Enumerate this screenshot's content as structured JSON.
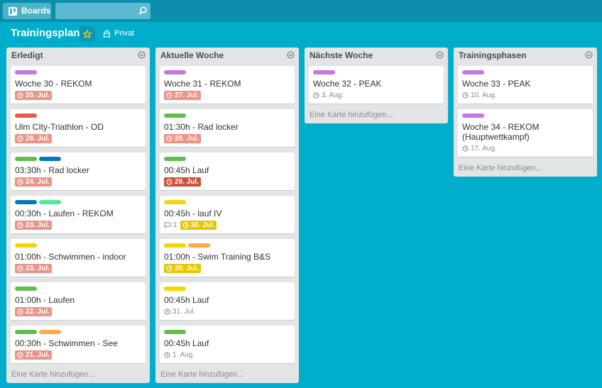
{
  "header": {
    "boards": "Boards"
  },
  "board": {
    "title": "Trainingsplan",
    "visibility": "Privat"
  },
  "lists": [
    {
      "name": "Erledigt",
      "add_card": "Eine Karte hinzufügen...",
      "cards": [
        {
          "title": "Woche 30 - REKOM",
          "labels": [
            "#c377e0"
          ],
          "due": "20. Jul.",
          "due_status": "overdue"
        },
        {
          "title": "Ulm CIty-Triathlon - OD",
          "labels": [
            "#eb5a46"
          ],
          "due": "26. Jul.",
          "due_status": "overdue"
        },
        {
          "title": "03:30h - Rad locker",
          "labels": [
            "#61bd4f",
            "#0079bf"
          ],
          "due": "24. Jul.",
          "due_status": "overdue"
        },
        {
          "title": "00:30h - Laufen - REKOM",
          "labels": [
            "#0079bf",
            "#51e898"
          ],
          "due": "23. Jul.",
          "due_status": "overdue"
        },
        {
          "title": "01:00h - Schwimmen - indoor",
          "labels": [
            "#f2d600"
          ],
          "due": "23. Jul.",
          "due_status": "overdue"
        },
        {
          "title": "01:00h - Laufen",
          "labels": [
            "#61bd4f"
          ],
          "due": "22. Jul.",
          "due_status": "overdue"
        },
        {
          "title": "00:30h - Schwimmen - See",
          "labels": [
            "#61bd4f",
            "#ffab4a"
          ],
          "due": "21. Jul.",
          "due_status": "overdue"
        }
      ]
    },
    {
      "name": "Aktuelle Woche",
      "add_card": "Eine Karte hinzufügen...",
      "cards": [
        {
          "title": "Woche 31 - REKOM",
          "labels": [
            "#c377e0"
          ],
          "due": "27. Jul.",
          "due_status": "overdue"
        },
        {
          "title": "01:30h - Rad locker",
          "labels": [
            "#61bd4f"
          ],
          "due": "28. Jul.",
          "due_status": "overdue"
        },
        {
          "title": "00:45h Lauf",
          "labels": [
            "#61bd4f"
          ],
          "due": "29. Jul.",
          "due_status": "now"
        },
        {
          "title": "00:45h - lauf IV",
          "labels": [
            "#f2d600"
          ],
          "comments": "1",
          "due": "30. Jul.",
          "due_status": "soon"
        },
        {
          "title": "01:00h - Swim Training B&S",
          "labels": [
            "#f2d600",
            "#ffab4a"
          ],
          "due": "30. Jul.",
          "due_status": "soon"
        },
        {
          "title": "00:45h Lauf",
          "labels": [
            "#f2d600"
          ],
          "due": "31. Jul.",
          "due_status": "later"
        },
        {
          "title": "00:45h Lauf",
          "labels": [
            "#61bd4f"
          ],
          "due": "1. Aug.",
          "due_status": "later"
        }
      ]
    },
    {
      "name": "Nächste Woche",
      "add_card": "Eine Karte hinzufügen...",
      "cards": [
        {
          "title": "Woche 32 - PEAK",
          "labels": [
            "#c377e0"
          ],
          "due": "3. Aug.",
          "due_status": "later"
        }
      ]
    },
    {
      "name": "Trainingsphasen",
      "add_card": "Eine Karte hinzufügen...",
      "cards": [
        {
          "title": "Woche 33 - PEAK",
          "labels": [
            "#c377e0"
          ],
          "due": "10. Aug.",
          "due_status": "later"
        },
        {
          "title": "Woche 34 - REKOM (Hauptwettkampf)",
          "labels": [
            "#c377e0"
          ],
          "due": "17. Aug.",
          "due_status": "later"
        }
      ]
    }
  ]
}
